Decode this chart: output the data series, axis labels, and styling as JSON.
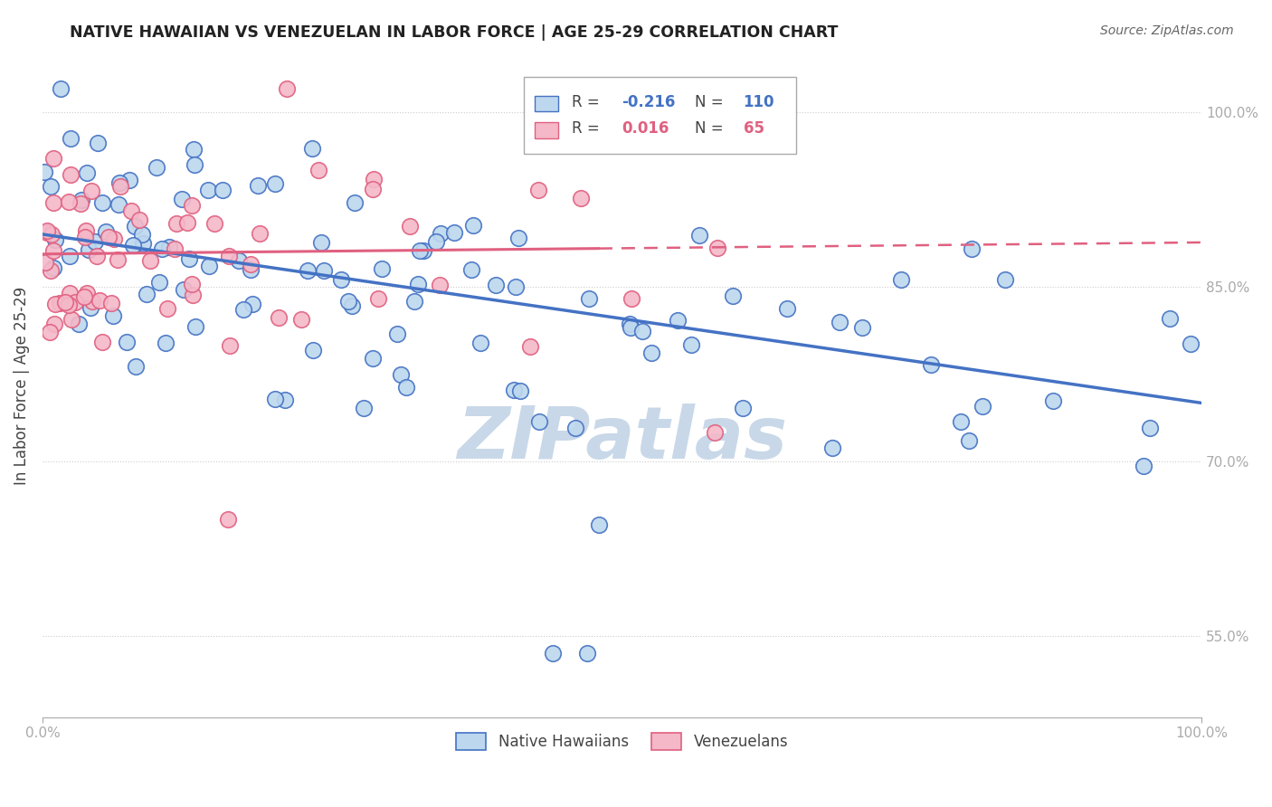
{
  "title": "NATIVE HAWAIIAN VS VENEZUELAN IN LABOR FORCE | AGE 25-29 CORRELATION CHART",
  "source": "Source: ZipAtlas.com",
  "ylabel": "In Labor Force | Age 25-29",
  "y_ticks": [
    55,
    70,
    85,
    100
  ],
  "x_range": [
    0.0,
    100.0
  ],
  "y_range": [
    48.0,
    105.0
  ],
  "blue_color": "#4472C4",
  "blue_fill": "#BDD7EE",
  "pink_color": "#E06080",
  "pink_fill": "#F4B8C8",
  "watermark": "ZIPatlas",
  "watermark_color": "#C8D8E8",
  "grid_color": "#CCCCCC",
  "background_color": "#ffffff",
  "R_blue": -0.216,
  "N_blue": 110,
  "R_pink": 0.016,
  "N_pink": 65,
  "blue_trend_start_y": 89.5,
  "blue_trend_end_y": 75.0,
  "pink_trend_start_y": 87.8,
  "pink_trend_end_y": 88.8
}
